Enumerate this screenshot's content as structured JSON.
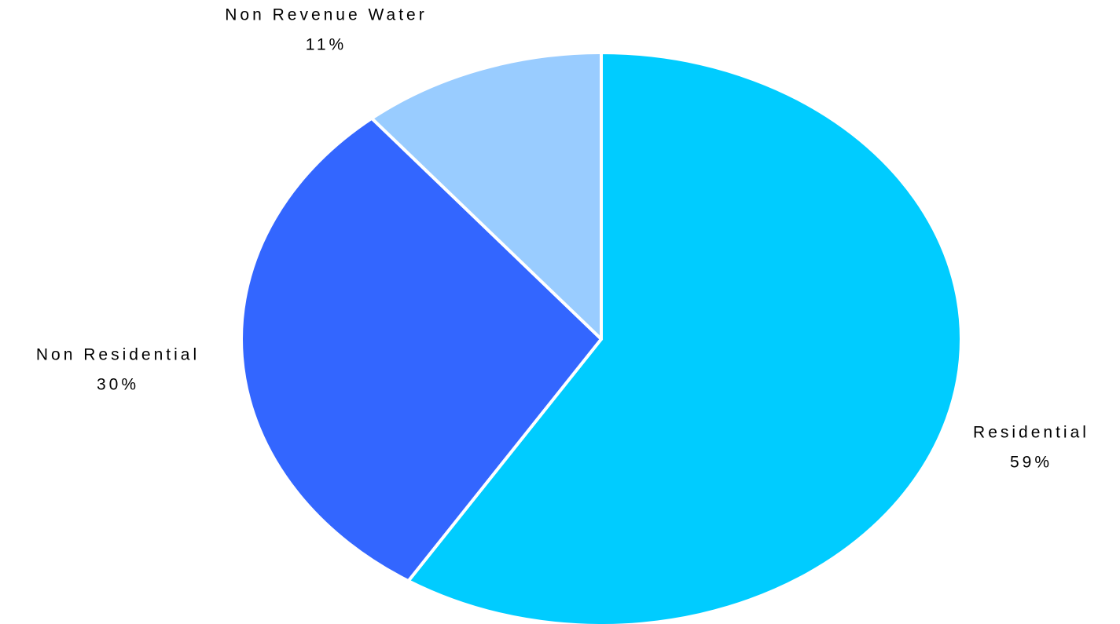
{
  "chart_data": {
    "type": "pie",
    "categories": [
      "Residential",
      "Non Residential",
      "Non Revenue Water"
    ],
    "values": [
      59,
      30,
      11
    ],
    "value_labels": [
      "59%",
      "30%",
      "11%"
    ],
    "colors": [
      "#00ccff",
      "#3366ff",
      "#99ccff"
    ]
  }
}
